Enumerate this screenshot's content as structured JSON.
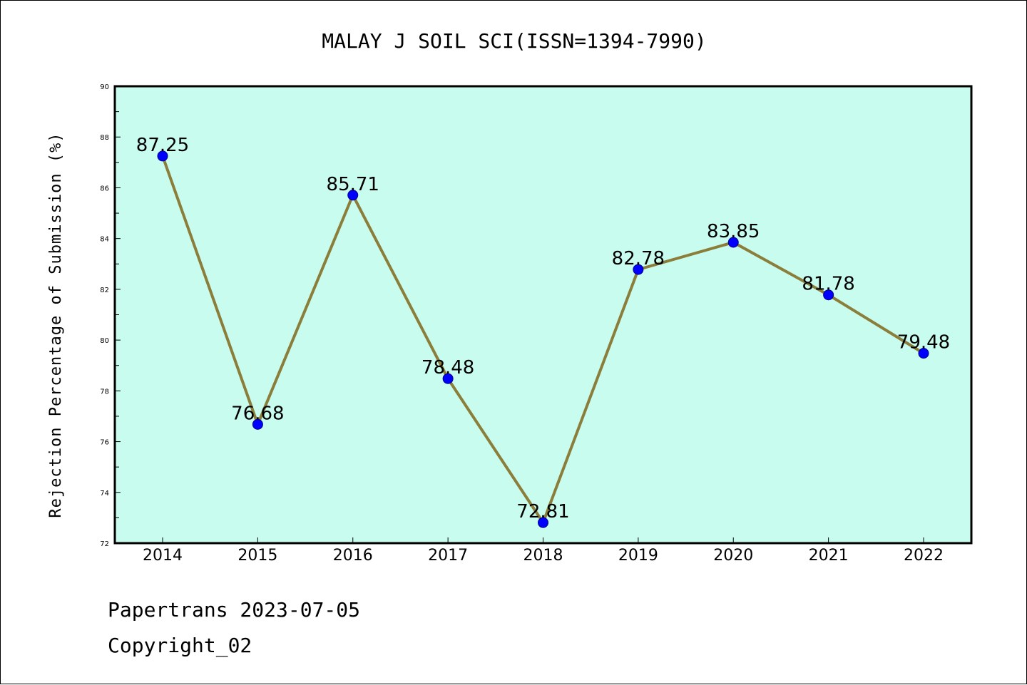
{
  "chart_data": {
    "type": "line",
    "title": "MALAY J SOIL SCI(ISSN=1394-7990)",
    "xlabel": "",
    "ylabel": "Rejection Percentage of Submission (%)",
    "categories": [
      "2014",
      "2015",
      "2016",
      "2017",
      "2018",
      "2019",
      "2020",
      "2021",
      "2022"
    ],
    "values": [
      87.25,
      76.68,
      85.71,
      78.48,
      72.81,
      82.78,
      83.85,
      81.78,
      79.48
    ],
    "data_labels": [
      "87.25",
      "76.68",
      "85.71",
      "78.48",
      "72.81",
      "82.78",
      "83.85",
      "81.78",
      "79.48"
    ],
    "ylim": [
      72,
      90
    ],
    "yticks": [
      72,
      74,
      76,
      78,
      80,
      82,
      84,
      86,
      88,
      90
    ],
    "grid": false,
    "legend": "none",
    "colors": {
      "plot_background": "#c8fcee",
      "line": "#8b7d3a",
      "marker": "#0000ff",
      "marker_edge": "#00008b"
    }
  },
  "footer": {
    "line1": "Papertrans 2023-07-05",
    "line2": "Copyright_02"
  }
}
